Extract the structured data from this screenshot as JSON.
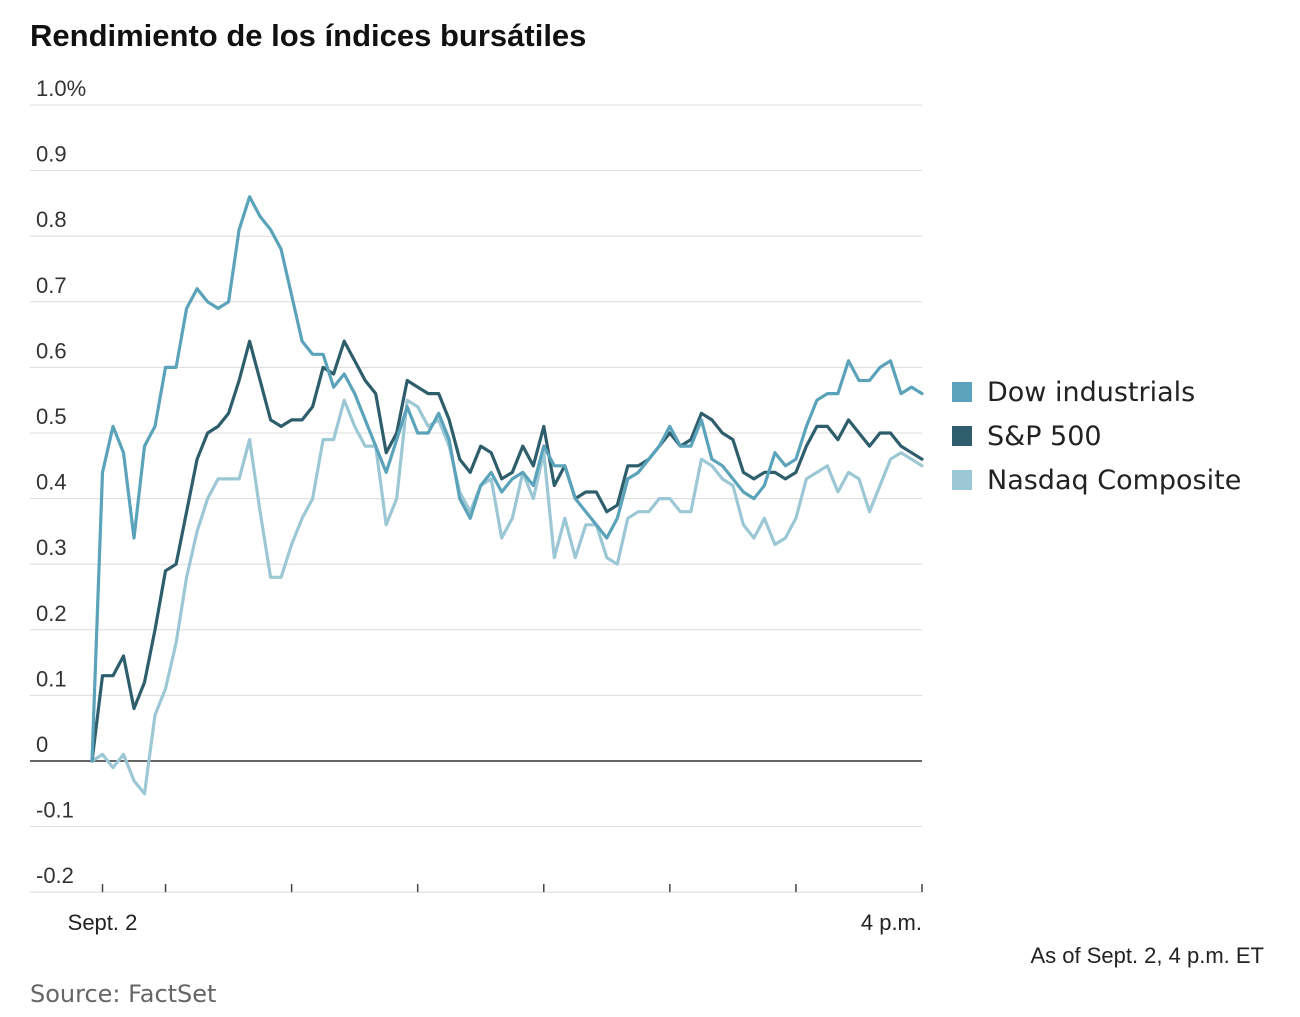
{
  "chart_data": {
    "type": "line",
    "title": "Rendimiento de los índices bursátiles",
    "ylim": [
      -0.2,
      1.0
    ],
    "yticks": [
      {
        "value": 1.0,
        "label": "1.0%"
      },
      {
        "value": 0.9,
        "label": "0.9"
      },
      {
        "value": 0.8,
        "label": "0.8"
      },
      {
        "value": 0.7,
        "label": "0.7"
      },
      {
        "value": 0.6,
        "label": "0.6"
      },
      {
        "value": 0.5,
        "label": "0.5"
      },
      {
        "value": 0.4,
        "label": "0.4"
      },
      {
        "value": 0.3,
        "label": "0.3"
      },
      {
        "value": 0.2,
        "label": "0.2"
      },
      {
        "value": 0.1,
        "label": "0.1"
      },
      {
        "value": 0,
        "label": "0"
      },
      {
        "value": -0.1,
        "label": "-0.1"
      },
      {
        "value": -0.2,
        "label": "-0.2"
      }
    ],
    "xlabels": [
      {
        "x": "9:30",
        "label": "Sept. 2"
      },
      {
        "x": "16:00",
        "label": "4 p.m."
      }
    ],
    "xticks": [
      "9:30",
      "10:00",
      "11:00",
      "12:00",
      "13:00",
      "14:00",
      "15:00",
      "16:00"
    ],
    "grid": true,
    "legend_position": "right",
    "x": [
      "9:25",
      "9:30",
      "9:35",
      "9:40",
      "9:45",
      "9:50",
      "9:55",
      "10:00",
      "10:05",
      "10:10",
      "10:15",
      "10:20",
      "10:25",
      "10:30",
      "10:35",
      "10:40",
      "10:45",
      "10:50",
      "10:55",
      "11:00",
      "11:05",
      "11:10",
      "11:15",
      "11:20",
      "11:25",
      "11:30",
      "11:35",
      "11:40",
      "11:45",
      "11:50",
      "11:55",
      "12:00",
      "12:05",
      "12:10",
      "12:15",
      "12:20",
      "12:25",
      "12:30",
      "12:35",
      "12:40",
      "12:45",
      "12:50",
      "12:55",
      "13:00",
      "13:05",
      "13:10",
      "13:15",
      "13:20",
      "13:25",
      "13:30",
      "13:35",
      "13:40",
      "13:45",
      "13:50",
      "13:55",
      "14:00",
      "14:05",
      "14:10",
      "14:15",
      "14:20",
      "14:25",
      "14:30",
      "14:35",
      "14:40",
      "14:45",
      "14:50",
      "14:55",
      "15:00",
      "15:05",
      "15:10",
      "15:15",
      "15:20",
      "15:25",
      "15:30",
      "15:35",
      "15:40",
      "15:45",
      "15:50",
      "15:55",
      "16:00"
    ],
    "series": [
      {
        "name": "Dow industrials",
        "color": "#5aa3ba",
        "values": [
          0.0,
          0.44,
          0.51,
          0.47,
          0.34,
          0.48,
          0.51,
          0.6,
          0.6,
          0.69,
          0.72,
          0.7,
          0.69,
          0.7,
          0.81,
          0.86,
          0.83,
          0.81,
          0.78,
          0.71,
          0.64,
          0.62,
          0.62,
          0.57,
          0.59,
          0.56,
          0.52,
          0.48,
          0.44,
          0.49,
          0.54,
          0.5,
          0.5,
          0.53,
          0.49,
          0.4,
          0.37,
          0.42,
          0.44,
          0.41,
          0.43,
          0.44,
          0.42,
          0.48,
          0.45,
          0.45,
          0.4,
          0.38,
          0.36,
          0.34,
          0.37,
          0.43,
          0.44,
          0.46,
          0.48,
          0.51,
          0.48,
          0.48,
          0.52,
          0.46,
          0.45,
          0.43,
          0.41,
          0.4,
          0.42,
          0.47,
          0.45,
          0.46,
          0.51,
          0.55,
          0.56,
          0.56,
          0.61,
          0.58,
          0.58,
          0.6,
          0.61,
          0.56,
          0.57,
          0.56
        ]
      },
      {
        "name": "S&P 500",
        "color": "#2e5e6c",
        "values": [
          0.0,
          0.13,
          0.13,
          0.16,
          0.08,
          0.12,
          0.2,
          0.29,
          0.3,
          0.38,
          0.46,
          0.5,
          0.51,
          0.53,
          0.58,
          0.64,
          0.58,
          0.52,
          0.51,
          0.52,
          0.52,
          0.54,
          0.6,
          0.59,
          0.64,
          0.61,
          0.58,
          0.56,
          0.47,
          0.5,
          0.58,
          0.57,
          0.56,
          0.56,
          0.52,
          0.46,
          0.44,
          0.48,
          0.47,
          0.43,
          0.44,
          0.48,
          0.45,
          0.51,
          0.42,
          0.45,
          0.4,
          0.41,
          0.41,
          0.38,
          0.39,
          0.45,
          0.45,
          0.46,
          0.48,
          0.5,
          0.48,
          0.49,
          0.53,
          0.52,
          0.5,
          0.49,
          0.44,
          0.43,
          0.44,
          0.44,
          0.43,
          0.44,
          0.48,
          0.51,
          0.51,
          0.49,
          0.52,
          0.5,
          0.48,
          0.5,
          0.5,
          0.48,
          0.47,
          0.46
        ]
      },
      {
        "name": "Nasdaq Composite",
        "color": "#9cc7d4",
        "values": [
          0.0,
          0.01,
          -0.01,
          0.01,
          -0.03,
          -0.05,
          0.07,
          0.11,
          0.18,
          0.28,
          0.35,
          0.4,
          0.43,
          0.43,
          0.43,
          0.49,
          0.38,
          0.28,
          0.28,
          0.33,
          0.37,
          0.4,
          0.49,
          0.49,
          0.55,
          0.51,
          0.48,
          0.48,
          0.36,
          0.4,
          0.55,
          0.54,
          0.51,
          0.52,
          0.48,
          0.41,
          0.38,
          0.42,
          0.43,
          0.34,
          0.37,
          0.44,
          0.4,
          0.47,
          0.31,
          0.37,
          0.31,
          0.36,
          0.36,
          0.31,
          0.3,
          0.37,
          0.38,
          0.38,
          0.4,
          0.4,
          0.38,
          0.38,
          0.46,
          0.45,
          0.43,
          0.42,
          0.36,
          0.34,
          0.37,
          0.33,
          0.34,
          0.37,
          0.43,
          0.44,
          0.45,
          0.41,
          0.44,
          0.43,
          0.38,
          0.42,
          0.46,
          0.47,
          0.46,
          0.45
        ]
      }
    ]
  },
  "note": "As of Sept. 2, 4 p.m. ET",
  "source": "Source: FactSet"
}
